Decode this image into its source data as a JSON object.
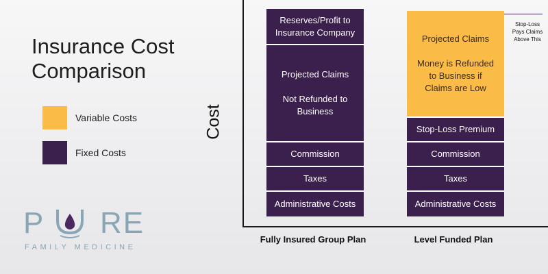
{
  "title": "Insurance Cost\nComparison",
  "legend": [
    {
      "label": "Variable Costs",
      "color": "#fbbc47"
    },
    {
      "label": "Fixed Costs",
      "color": "#3b1f4c"
    }
  ],
  "chart_data": {
    "type": "bar",
    "stacked": true,
    "ylabel": "Cost",
    "categories": [
      "Fully Insured Group Plan",
      "Level Funded Plan"
    ],
    "colors": {
      "fixed": "#3b1f4c",
      "variable": "#fbbc47"
    },
    "bars": [
      {
        "label": "Fully Insured Group Plan",
        "segments": [
          {
            "text": "Administrative Costs",
            "kind": "fixed",
            "value": 1
          },
          {
            "text": "Taxes",
            "kind": "fixed",
            "value": 1
          },
          {
            "text": "Commission",
            "kind": "fixed",
            "value": 1
          },
          {
            "text": "Projected Claims\n\nNot Refunded to\nBusiness",
            "kind": "fixed",
            "value": 4
          },
          {
            "text": "Reserves/Profit to\nInsurance Company",
            "kind": "fixed",
            "value": 1.5
          }
        ]
      },
      {
        "label": "Level Funded Plan",
        "segments": [
          {
            "text": "Administrative Costs",
            "kind": "fixed",
            "value": 1
          },
          {
            "text": "Taxes",
            "kind": "fixed",
            "value": 1
          },
          {
            "text": "Commission",
            "kind": "fixed",
            "value": 1
          },
          {
            "text": "Stop-Loss Premium",
            "kind": "fixed",
            "value": 1
          },
          {
            "text": "Projected Claims\n\nMoney is Refunded\nto Business if\nClaims are Low",
            "kind": "variable",
            "value": 4.4
          }
        ]
      }
    ],
    "annotation": "Stop-Loss\nPays Claims\nAbove This"
  },
  "logo": {
    "word": "PURE",
    "tagline": "FAMILY MEDICINE",
    "colors": {
      "letters": "#8aa5b4",
      "drop": "#4a2a5e"
    }
  }
}
